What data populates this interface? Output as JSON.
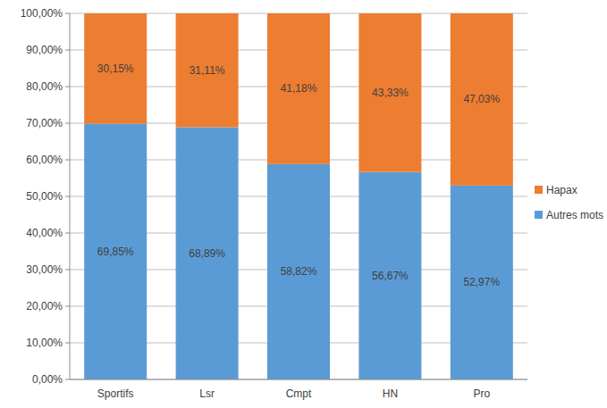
{
  "chart_data": {
    "type": "bar",
    "stacked": true,
    "data_labels": true,
    "grid": true,
    "legend": "right",
    "categories": [
      "Sportifs",
      "Lsr",
      "Cmpt",
      "HN",
      "Pro"
    ],
    "ylim": [
      0,
      100
    ],
    "yticks": [
      {
        "value": 0,
        "label": "0,00%"
      },
      {
        "value": 10,
        "label": "10,00%"
      },
      {
        "value": 20,
        "label": "20,00%"
      },
      {
        "value": 30,
        "label": "30,00%"
      },
      {
        "value": 40,
        "label": "40,00%"
      },
      {
        "value": 50,
        "label": "50,00%"
      },
      {
        "value": 60,
        "label": "60,00%"
      },
      {
        "value": 70,
        "label": "70,00%"
      },
      {
        "value": 80,
        "label": "80,00%"
      },
      {
        "value": 90,
        "label": "90,00%"
      },
      {
        "value": 100,
        "label": "100,00%"
      }
    ],
    "series": [
      {
        "name": "Autres mots",
        "color": "#5b9bd5",
        "values": [
          69.85,
          68.89,
          58.82,
          56.67,
          52.97
        ],
        "value_labels": [
          "69,85%",
          "68,89%",
          "58,82%",
          "56,67%",
          "52,97%"
        ]
      },
      {
        "name": "Hapax",
        "color": "#ed7d31",
        "values": [
          30.15,
          31.11,
          41.18,
          43.33,
          47.03
        ],
        "value_labels": [
          "30,15%",
          "31,11%",
          "41,18%",
          "43,33%",
          "47,03%"
        ]
      }
    ]
  }
}
